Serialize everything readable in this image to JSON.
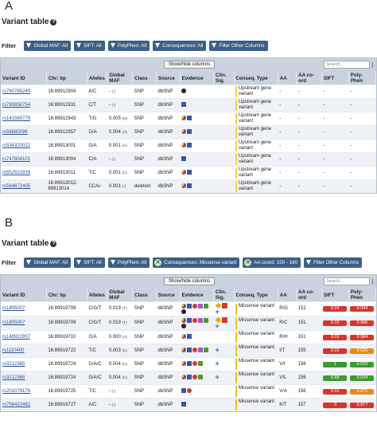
{
  "panel_a": {
    "letter": "A",
    "title": "Variant table",
    "filter_label": "Filter",
    "filters": [
      "Global MAF: All",
      "SIFT: All",
      "PolyPhen: All",
      "Consequences: All",
      "Filter Other Columns"
    ],
    "show_hide_label": "Show/hide columns",
    "search_placeholder": "Search...",
    "columns": [
      "Variant ID",
      "Chr: bp",
      "Alleles",
      "Global MAF",
      "Class",
      "Source",
      "Evidence",
      "Clin. Sig.",
      "Conseq. Type",
      "AA",
      "AA co-ord",
      "SIFT",
      "Poly-Phen"
    ],
    "rows": [
      {
        "id": "rs780765249",
        "pos": "16:89912904",
        "alleles": "A/C",
        "maf": "-",
        "maf_sub": "(-)",
        "cls": "SNP",
        "source": "dbSNP",
        "evidence": [
          "c"
        ],
        "conseq": "Upstream gene variant",
        "aa": "-",
        "coord": "-",
        "sift": "-",
        "pp": "-"
      },
      {
        "id": "rs780856754",
        "pos": "16:89912931",
        "alleles": "C/T",
        "maf": "-",
        "maf_sub": "(-)",
        "cls": "SNP",
        "source": "dbSNP",
        "evidence": [
          "u"
        ],
        "conseq": "Upstream gene variant",
        "aa": "-",
        "coord": "-",
        "sift": "-",
        "pp": "-"
      },
      {
        "id": "rs141569779",
        "pos": "16:89912943",
        "alleles": "T/G",
        "maf": "0.005",
        "maf_sub": "(G)",
        "cls": "SNP",
        "source": "dbSNP",
        "evidence": [
          "g",
          "u"
        ],
        "conseq": "Upstream gene variant",
        "aa": "-",
        "coord": "-",
        "sift": "-",
        "pp": "-"
      },
      {
        "id": "rs56680096",
        "pos": "16:89912957",
        "alleles": "G/A",
        "maf": "0.004",
        "maf_sub": "(A)",
        "cls": "SNP",
        "source": "dbSNP",
        "evidence": [
          "g",
          "u"
        ],
        "conseq": "Upstream gene variant",
        "aa": "-",
        "coord": "-",
        "sift": "-",
        "pp": "-"
      },
      {
        "id": "rs534320022",
        "pos": "16:89913001",
        "alleles": "G/A",
        "maf": "0.001",
        "maf_sub": "(A)",
        "cls": "SNP",
        "source": "dbSNP",
        "evidence": [
          "g",
          "u"
        ],
        "conseq": "Upstream gene variant",
        "aa": "-",
        "coord": "-",
        "sift": "-",
        "pp": "-"
      },
      {
        "id": "rs747804101",
        "pos": "16:89913004",
        "alleles": "C/A",
        "maf": "-",
        "maf_sub": "(-)",
        "cls": "SNP",
        "source": "dbSNP",
        "evidence": [
          "u"
        ],
        "conseq": "Upstream gene variant",
        "aa": "-",
        "coord": "-",
        "sift": "-",
        "pp": "-"
      },
      {
        "id": "rs552521939",
        "pos": "16:89913011",
        "alleles": "T/C",
        "maf": "0.001",
        "maf_sub": "(C)",
        "cls": "SNP",
        "source": "dbSNP",
        "evidence": [
          "g",
          "u"
        ],
        "conseq": "Upstream gene variant",
        "aa": "-",
        "coord": "-",
        "sift": "-",
        "pp": "-"
      },
      {
        "id": "rs564872405",
        "pos": "16:89913012-89913014",
        "alleles": "CCA/-",
        "maf": "0.001",
        "maf_sub": "(-)",
        "cls": "deletion",
        "source": "dbSNP",
        "evidence": [
          "g",
          "u"
        ],
        "conseq": "Upstream gene variant",
        "aa": "-",
        "coord": "-",
        "sift": "-",
        "pp": "-"
      }
    ]
  },
  "panel_b": {
    "letter": "B",
    "title": "Variant table",
    "filter_label": "Filter",
    "filters": [
      "Global MAF: All",
      "SIFT: All",
      "PolyPhen: All"
    ],
    "active_filters": [
      "Consequences: Missense variant",
      "AA coord: 150 - 160"
    ],
    "last_filter": "Filter Other Columns",
    "show_hide_label": "Show/hide columns",
    "search_placeholder": "Search...",
    "columns": [
      "Variant ID",
      "Chr: bp",
      "Alleles",
      "Global MAF",
      "Class",
      "Source",
      "Evidence",
      "Clin. Sig.",
      "Conseq. Type",
      "AA",
      "AA co-ord",
      "SIFT",
      "Poly-Phen"
    ],
    "rows": [
      {
        "id": "rs1805007",
        "pos": "16:89919709",
        "alleles": "C/G/T",
        "maf": "0.019",
        "maf_sub": "(T)",
        "cls": "SNP",
        "source": "dbSNP",
        "evidence": [
          "g",
          "u",
          "r",
          "p",
          "gr",
          "c"
        ],
        "clin": [
          "d",
          "rd",
          "plus"
        ],
        "conseq": "Missense variant",
        "aa": "R/G",
        "coord": "151",
        "sift": "0.01",
        "sift_color": "#d9342b",
        "pp": "0.944",
        "pp_color": "#d9342b"
      },
      {
        "id": "rs1805007",
        "pos": "16:89919709",
        "alleles": "C/G/T",
        "maf": "0.019",
        "maf_sub": "(T)",
        "cls": "SNP",
        "source": "dbSNP",
        "evidence": [
          "g",
          "u",
          "r",
          "p",
          "gr",
          "c"
        ],
        "clin": [
          "d",
          "rd",
          "plus"
        ],
        "conseq": "Missense variant",
        "aa": "R/C",
        "coord": "151",
        "sift": "0.02",
        "sift_color": "#d9342b",
        "pp": "0.986",
        "pp_color": "#d9342b"
      },
      {
        "id": "rs149922857",
        "pos": "16:89919710",
        "alleles": "G/A",
        "maf": "0.000",
        "maf_sub": "(A)",
        "cls": "SNP",
        "source": "dbSNP",
        "evidence": [
          "g",
          "u"
        ],
        "clin": [],
        "conseq": "Missense variant",
        "aa": "R/H",
        "coord": "151",
        "sift": "0.01",
        "sift_color": "#d9342b",
        "pp": "0.984",
        "pp_color": "#d9342b"
      },
      {
        "id": "rs1110400",
        "pos": "16:89919722",
        "alleles": "T/C",
        "maf": "0.003",
        "maf_sub": "(C)",
        "cls": "SNP",
        "source": "dbSNP",
        "evidence": [
          "g",
          "u",
          "r",
          "p",
          "gr"
        ],
        "clin": [
          "plus"
        ],
        "conseq": "Missense variant",
        "aa": "I/T",
        "coord": "155",
        "sift": "0.02",
        "sift_color": "#d9342b",
        "pp": "0.626",
        "pp_color": "#e88a1a"
      },
      {
        "id": "rs3212365",
        "pos": "16:89919724",
        "alleles": "G/A/C",
        "maf": "0.004",
        "maf_sub": "(C)",
        "cls": "SNP",
        "source": "dbSNP",
        "evidence": [
          "g",
          "u",
          "r",
          "gr"
        ],
        "clin": [
          "plus"
        ],
        "conseq": "Missense variant",
        "aa": "V/I",
        "coord": "156",
        "sift": "1",
        "sift_color": "#3c9a2e",
        "pp": "0.029",
        "pp_color": "#3c9a2e"
      },
      {
        "id": "rs3212365",
        "pos": "16:89919724",
        "alleles": "G/A/C",
        "maf": "0.004",
        "maf_sub": "(C)",
        "cls": "SNP",
        "source": "dbSNP",
        "evidence": [
          "g",
          "u",
          "r",
          "gr"
        ],
        "clin": [
          "plus"
        ],
        "conseq": "Missense variant",
        "aa": "V/L",
        "coord": "156",
        "sift": "0.88",
        "sift_color": "#3c9a2e",
        "pp": "0.034",
        "pp_color": "#3c9a2e"
      },
      {
        "id": "rs201079178",
        "pos": "16:89919725",
        "alleles": "T/C",
        "maf": "-",
        "maf_sub": "(-)",
        "cls": "SNP",
        "source": "dbSNP",
        "evidence": [
          "u",
          "r"
        ],
        "clin": [],
        "conseq": "Missense variant",
        "aa": "V/A",
        "coord": "156",
        "sift": "0.01",
        "sift_color": "#d9342b",
        "pp": "0.871",
        "pp_color": "#e88a1a"
      },
      {
        "id": "rs756422482",
        "pos": "16:89919727",
        "alleles": "A/C",
        "maf": "-",
        "maf_sub": "(-)",
        "cls": "SNP",
        "source": "dbSNP",
        "evidence": [
          "u"
        ],
        "clin": [],
        "conseq": "Missense variant",
        "aa": "K/T",
        "coord": "157",
        "sift": "0",
        "sift_color": "#d9342b",
        "pp": "0.977",
        "pp_color": "#d9342b"
      }
    ]
  },
  "colors": {
    "header_bg": "#c9d3df",
    "filter_button": "#3d5f86",
    "link": "#2a4f96",
    "upstream_bar": "#f3d44b",
    "missense_bar": "#f0c21a"
  }
}
